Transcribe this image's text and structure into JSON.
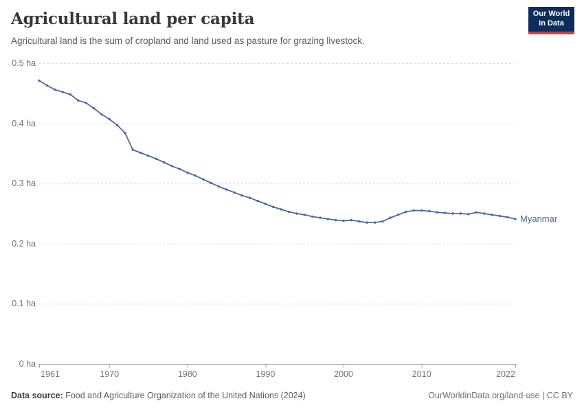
{
  "header": {
    "title": "Agricultural land per capita",
    "subtitle": "Agricultural land is the sum of cropland and land used as pasture for grazing livestock."
  },
  "logo": {
    "line1": "Our World",
    "line2": "in Data",
    "bg_color": "#0d2e5c",
    "accent_color": "#d93c3c",
    "text_color": "#ffffff"
  },
  "footer": {
    "source_label": "Data source:",
    "source_text": " Food and Agriculture Organization of the United Nations (2024)",
    "license_text": "OurWorldinData.org/land-use | CC BY"
  },
  "chart_data": {
    "type": "line",
    "title": "Agricultural land per capita",
    "unit": "ha",
    "xlabel": "",
    "ylabel": "",
    "xlim": [
      1961,
      2022
    ],
    "ylim": [
      0,
      0.5
    ],
    "grid": "horizontal-dashed",
    "legend_position": "end-of-line-label",
    "x": [
      1961,
      1962,
      1963,
      1964,
      1965,
      1966,
      1967,
      1968,
      1969,
      1970,
      1971,
      1972,
      1973,
      1974,
      1975,
      1976,
      1977,
      1978,
      1979,
      1980,
      1981,
      1982,
      1983,
      1984,
      1985,
      1986,
      1987,
      1988,
      1989,
      1990,
      1991,
      1992,
      1993,
      1994,
      1995,
      1996,
      1997,
      1998,
      1999,
      2000,
      2001,
      2002,
      2003,
      2004,
      2005,
      2006,
      2007,
      2008,
      2009,
      2010,
      2011,
      2012,
      2013,
      2014,
      2015,
      2016,
      2017,
      2018,
      2019,
      2020,
      2021,
      2022
    ],
    "series": [
      {
        "name": "Myanmar",
        "color": "#4c6a9c",
        "values": [
          0.471,
          0.463,
          0.456,
          0.452,
          0.448,
          0.438,
          0.434,
          0.425,
          0.415,
          0.407,
          0.397,
          0.384,
          0.356,
          0.351,
          0.346,
          0.341,
          0.335,
          0.329,
          0.324,
          0.318,
          0.313,
          0.307,
          0.301,
          0.295,
          0.29,
          0.285,
          0.28,
          0.276,
          0.271,
          0.266,
          0.261,
          0.257,
          0.253,
          0.25,
          0.248,
          0.245,
          0.243,
          0.241,
          0.239,
          0.238,
          0.239,
          0.237,
          0.235,
          0.235,
          0.237,
          0.243,
          0.248,
          0.253,
          0.255,
          0.255,
          0.254,
          0.252,
          0.251,
          0.25,
          0.25,
          0.249,
          0.252,
          0.25,
          0.248,
          0.246,
          0.244,
          0.241
        ]
      }
    ],
    "y_ticks": [
      {
        "value": 0.5,
        "label": "0.5 ha"
      },
      {
        "value": 0.4,
        "label": "0.4 ha"
      },
      {
        "value": 0.3,
        "label": "0.3 ha"
      },
      {
        "value": 0.2,
        "label": "0.2 ha"
      },
      {
        "value": 0.1,
        "label": "0.1 ha"
      },
      {
        "value": 0,
        "label": "0 ha"
      }
    ],
    "x_ticks": [
      {
        "value": 1961,
        "label": "1961"
      },
      {
        "value": 1970,
        "label": "1970"
      },
      {
        "value": 1980,
        "label": "1980"
      },
      {
        "value": 1990,
        "label": "1990"
      },
      {
        "value": 2000,
        "label": "2000"
      },
      {
        "value": 2010,
        "label": "2010"
      },
      {
        "value": 2022,
        "label": "2022"
      }
    ]
  }
}
